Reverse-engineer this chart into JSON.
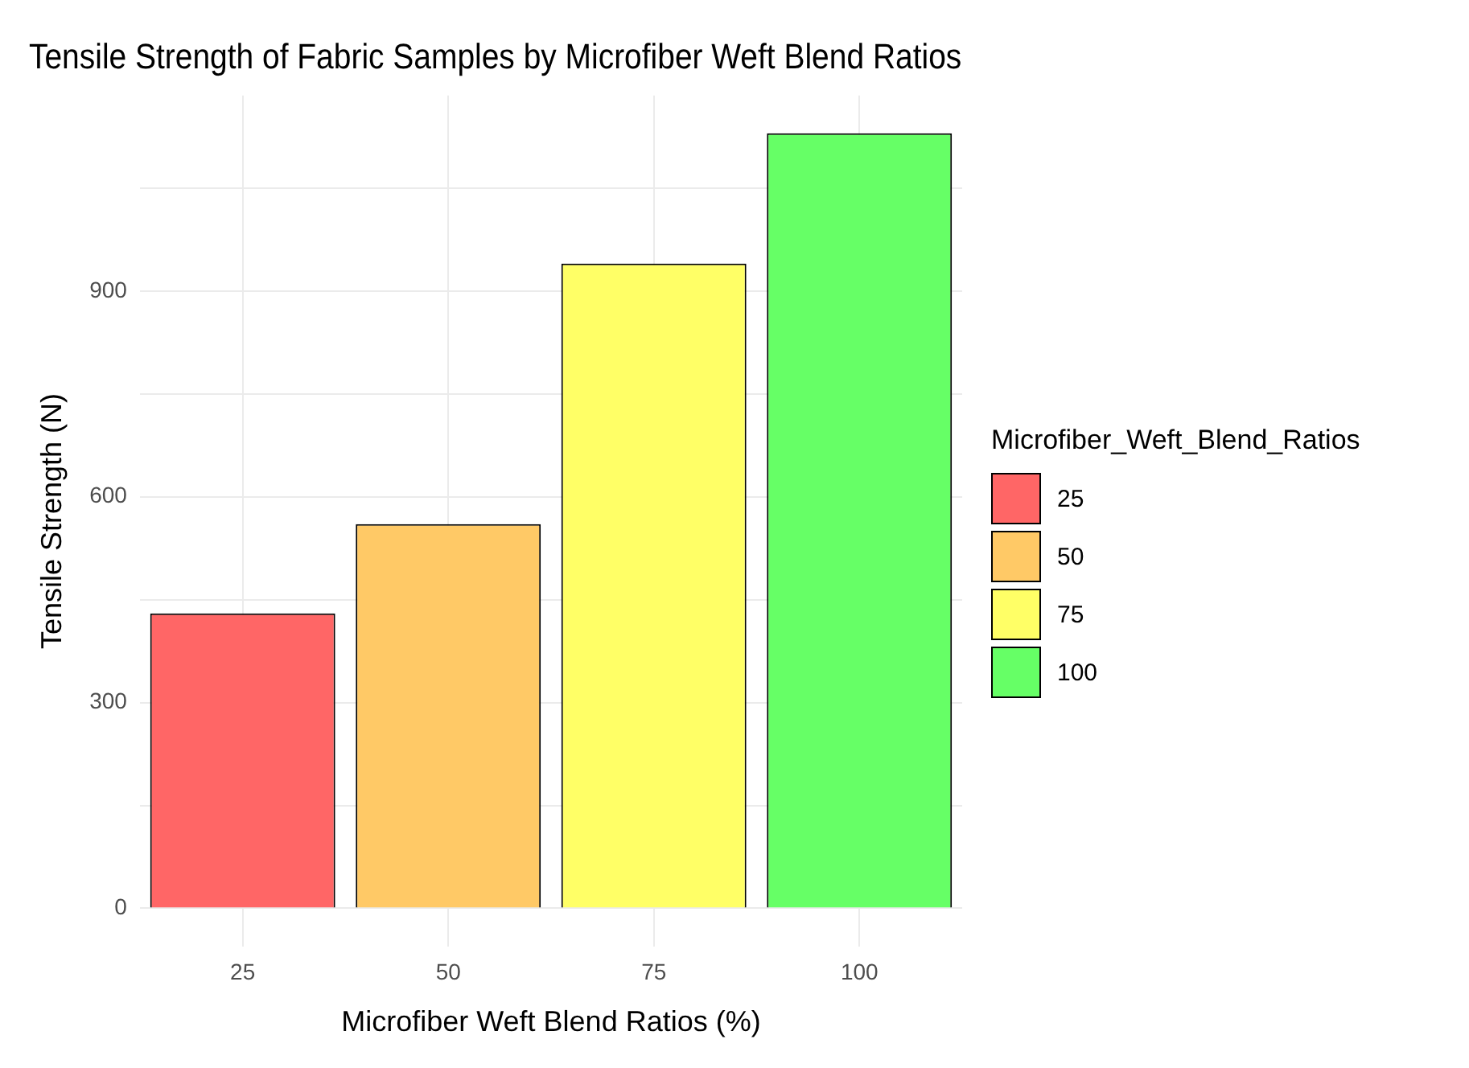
{
  "chart_data": {
    "type": "bar",
    "title": "Tensile Strength of Fabric Samples by Microfiber Weft Blend Ratios",
    "xlabel": "Microfiber Weft Blend Ratios (%)",
    "ylabel": "Tensile Strength (N)",
    "legend_title": "Microfiber_Weft_Blend_Ratios",
    "categories": [
      "25",
      "50",
      "75",
      "100"
    ],
    "series": [
      {
        "name": "25",
        "color": "#ff6666",
        "values": [
          430,
          null,
          null,
          null
        ]
      },
      {
        "name": "50",
        "color": "#ffc966",
        "values": [
          null,
          560,
          null,
          null
        ]
      },
      {
        "name": "75",
        "color": "#ffff66",
        "values": [
          null,
          null,
          940,
          null
        ]
      },
      {
        "name": "100",
        "color": "#66ff66",
        "values": [
          null,
          null,
          null,
          1130
        ]
      }
    ],
    "ylim": [
      -56,
      1185
    ],
    "yticks": [
      0,
      {
        "value": 150,
        "label": null
      },
      300,
      {
        "value": 450,
        "label": null
      },
      600,
      {
        "value": 750,
        "label": null
      },
      900,
      {
        "value": 1050,
        "label": null
      }
    ],
    "grid": true,
    "legend": "right"
  }
}
